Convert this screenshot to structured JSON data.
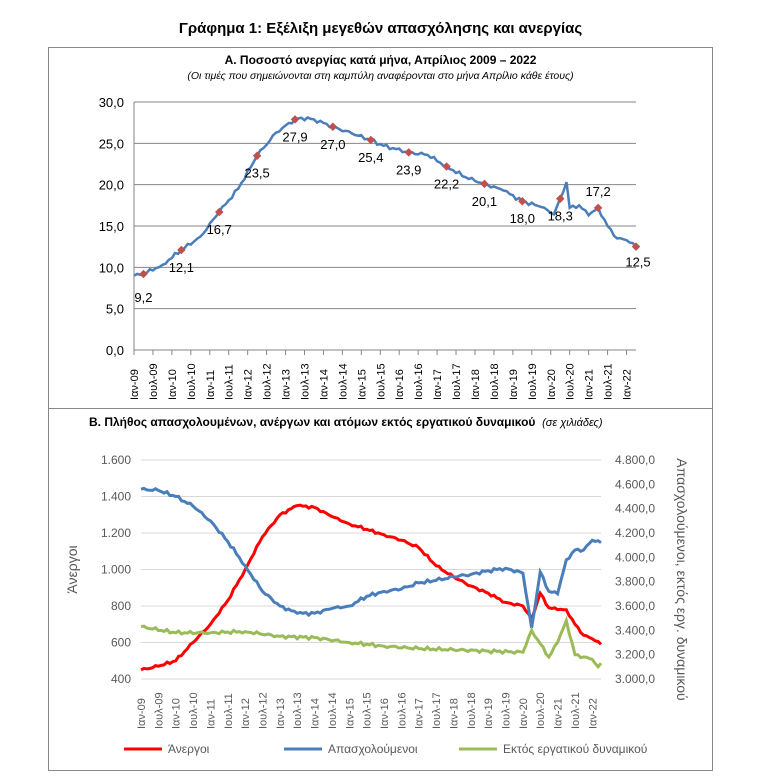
{
  "title": "Γράφημα 1: Εξέλιξη μεγεθών απασχόλησης και ανεργίας",
  "chart_data": [
    {
      "type": "line",
      "title": "Α. Ποσοστό ανεργίας κατά μήνα, Απρίλιος 2009 – 2022",
      "subtitle": "(Οι τιμές που σημειώνονται στη καμπύλη αναφέρονται στο μήνα Απρίλιο κάθε έτους)",
      "ylim": [
        0,
        30
      ],
      "yticks": [
        "0,0",
        "5,0",
        "10,0",
        "15,0",
        "20,0",
        "25,0",
        "30,0"
      ],
      "xlim": [
        "2009-01",
        "2022-04"
      ],
      "xticks": [
        "Ιαν-09",
        "Ιουλ-09",
        "Ιαν-10",
        "Ιουλ-10",
        "Ιαν-11",
        "Ιουλ-11",
        "Ιαν-12",
        "Ιουλ-12",
        "Ιαν-13",
        "Ιουλ-13",
        "Ιαν-14",
        "Ιουλ-14",
        "Ιαν-15",
        "Ιουλ-15",
        "Ιαν-16",
        "Ιουλ-16",
        "Ιαν-17",
        "Ιουλ-17",
        "Ιαν-18",
        "Ιουλ-18",
        "Ιαν-19",
        "Ιουλ-19",
        "Ιαν-20",
        "Ιουλ-20",
        "Ιαν-21",
        "Ιουλ-21",
        "Ιαν-22"
      ],
      "color": "#4a7ebb",
      "marker_color": "#c0504d",
      "series": [
        [
          "2009-01",
          9.0
        ],
        [
          "2009-04",
          9.2
        ],
        [
          "2009-10",
          10.3
        ],
        [
          "2010-04",
          12.1
        ],
        [
          "2010-10",
          13.7
        ],
        [
          "2011-04",
          16.7
        ],
        [
          "2011-10",
          19.5
        ],
        [
          "2012-04",
          23.5
        ],
        [
          "2012-10",
          26.3
        ],
        [
          "2013-04",
          27.9
        ],
        [
          "2013-06",
          28.1
        ],
        [
          "2013-10",
          27.9
        ],
        [
          "2014-04",
          27.0
        ],
        [
          "2014-10",
          26.2
        ],
        [
          "2015-04",
          25.4
        ],
        [
          "2015-08",
          24.7
        ],
        [
          "2016-04",
          23.9
        ],
        [
          "2016-10",
          23.6
        ],
        [
          "2017-04",
          22.2
        ],
        [
          "2017-10",
          20.9
        ],
        [
          "2018-04",
          20.1
        ],
        [
          "2018-10",
          19.3
        ],
        [
          "2019-04",
          18.0
        ],
        [
          "2019-10",
          17.3
        ],
        [
          "2020-02",
          16.4
        ],
        [
          "2020-04",
          18.3
        ],
        [
          "2020-06",
          20.3
        ],
        [
          "2020-07",
          17.2
        ],
        [
          "2020-10",
          17.5
        ],
        [
          "2021-01",
          16.3
        ],
        [
          "2021-04",
          17.2
        ],
        [
          "2021-07",
          15.0
        ],
        [
          "2021-10",
          13.5
        ],
        [
          "2022-01",
          13.3
        ],
        [
          "2022-04",
          12.5
        ]
      ],
      "annotations": [
        [
          "2009-04",
          "9,2"
        ],
        [
          "2010-04",
          "12,1"
        ],
        [
          "2011-04",
          "16,7"
        ],
        [
          "2012-04",
          "23,5"
        ],
        [
          "2013-04",
          "27,9"
        ],
        [
          "2014-04",
          "27,0"
        ],
        [
          "2015-04",
          "25,4"
        ],
        [
          "2016-04",
          "23,9"
        ],
        [
          "2017-04",
          "22,2"
        ],
        [
          "2018-04",
          "20,1"
        ],
        [
          "2019-04",
          "18,0"
        ],
        [
          "2020-04",
          "18,3"
        ],
        [
          "2021-04",
          "17,2"
        ],
        [
          "2022-04",
          "12,5"
        ]
      ]
    },
    {
      "type": "line",
      "title": "Β. Πλήθος απασχολουμένων, ανέργων και ατόμων εκτός εργατικού δυναμικού",
      "subtitle": "(σε χιλιάδες)",
      "ylabel": "Άνεργοι",
      "y2label": "Απασχολούμενοι, εκτός εργ. δυναμικού",
      "ylim": [
        400,
        1600
      ],
      "y2lim": [
        3000,
        4800
      ],
      "yticks": [
        "400",
        "600",
        "800",
        "1.000",
        "1.200",
        "1.400",
        "1.600"
      ],
      "y2ticks": [
        "3.000,0",
        "3.200,0",
        "3.400,0",
        "3.600,0",
        "3.800,0",
        "4.000,0",
        "4.200,0",
        "4.400,0",
        "4.600,0",
        "4.800,0"
      ],
      "xlim": [
        "2009-01",
        "2022-04"
      ],
      "xticks": [
        "Ιαν-09",
        "Ιουλ-09",
        "Ιαν-10",
        "Ιουλ-10",
        "Ιαν-11",
        "Ιουλ-11",
        "Ιαν-12",
        "Ιουλ-12",
        "Ιαν-13",
        "Ιουλ-13",
        "Ιαν-14",
        "Ιουλ-14",
        "Ιαν-15",
        "Ιουλ-15",
        "Ιαν-16",
        "Ιουλ-16",
        "Ιαν-17",
        "Ιουλ-17",
        "Ιαν-18",
        "Ιουλ-18",
        "Ιαν-19",
        "Ιουλ-19",
        "Ιαν-20",
        "Ιουλ-20",
        "Ιαν-21",
        "Ιουλ-21",
        "Ιαν-22"
      ],
      "legend_position": "bottom",
      "series": [
        {
          "name": "Άνεργοι",
          "axis": "left",
          "color": "#ff0000",
          "points": [
            [
              "2009-01",
              450
            ],
            [
              "2009-07",
              470
            ],
            [
              "2010-01",
              500
            ],
            [
              "2010-07",
              600
            ],
            [
              "2011-01",
              700
            ],
            [
              "2011-07",
              830
            ],
            [
              "2012-01",
              1000
            ],
            [
              "2012-07",
              1180
            ],
            [
              "2013-01",
              1300
            ],
            [
              "2013-07",
              1350
            ],
            [
              "2014-01",
              1340
            ],
            [
              "2014-07",
              1290
            ],
            [
              "2015-01",
              1250
            ],
            [
              "2015-07",
              1220
            ],
            [
              "2016-01",
              1190
            ],
            [
              "2016-07",
              1160
            ],
            [
              "2017-01",
              1120
            ],
            [
              "2017-07",
              1020
            ],
            [
              "2018-01",
              960
            ],
            [
              "2018-07",
              910
            ],
            [
              "2019-01",
              870
            ],
            [
              "2019-07",
              820
            ],
            [
              "2020-01",
              800
            ],
            [
              "2020-04",
              730
            ],
            [
              "2020-07",
              870
            ],
            [
              "2020-10",
              790
            ],
            [
              "2021-01",
              780
            ],
            [
              "2021-04",
              780
            ],
            [
              "2021-07",
              700
            ],
            [
              "2021-10",
              640
            ],
            [
              "2022-01",
              620
            ],
            [
              "2022-04",
              590
            ]
          ]
        },
        {
          "name": "Απασχολούμενοι",
          "axis": "right",
          "color": "#4a7ebb",
          "points": [
            [
              "2009-01",
              4560
            ],
            [
              "2009-07",
              4550
            ],
            [
              "2010-01",
              4500
            ],
            [
              "2010-07",
              4420
            ],
            [
              "2011-01",
              4300
            ],
            [
              "2011-07",
              4130
            ],
            [
              "2012-01",
              3930
            ],
            [
              "2012-07",
              3720
            ],
            [
              "2013-01",
              3600
            ],
            [
              "2013-07",
              3540
            ],
            [
              "2014-01",
              3540
            ],
            [
              "2014-07",
              3580
            ],
            [
              "2015-01",
              3600
            ],
            [
              "2015-07",
              3680
            ],
            [
              "2016-01",
              3720
            ],
            [
              "2016-07",
              3740
            ],
            [
              "2017-01",
              3790
            ],
            [
              "2017-07",
              3810
            ],
            [
              "2018-01",
              3840
            ],
            [
              "2018-07",
              3860
            ],
            [
              "2019-01",
              3890
            ],
            [
              "2019-07",
              3910
            ],
            [
              "2020-01",
              3870
            ],
            [
              "2020-04",
              3420
            ],
            [
              "2020-07",
              3880
            ],
            [
              "2020-10",
              3720
            ],
            [
              "2021-01",
              3700
            ],
            [
              "2021-04",
              3980
            ],
            [
              "2021-07",
              4060
            ],
            [
              "2021-10",
              4060
            ],
            [
              "2022-01",
              4140
            ],
            [
              "2022-04",
              4120
            ]
          ]
        },
        {
          "name": "Εκτός εργατικού δυναμικού",
          "axis": "right",
          "color": "#9bbb59",
          "points": [
            [
              "2009-01",
              3430
            ],
            [
              "2010-01",
              3380
            ],
            [
              "2011-01",
              3380
            ],
            [
              "2012-01",
              3390
            ],
            [
              "2013-01",
              3350
            ],
            [
              "2014-01",
              3340
            ],
            [
              "2015-01",
              3300
            ],
            [
              "2016-01",
              3270
            ],
            [
              "2017-01",
              3250
            ],
            [
              "2018-01",
              3240
            ],
            [
              "2019-01",
              3230
            ],
            [
              "2020-01",
              3220
            ],
            [
              "2020-04",
              3400
            ],
            [
              "2020-10",
              3180
            ],
            [
              "2021-01",
              3300
            ],
            [
              "2021-04",
              3480
            ],
            [
              "2021-07",
              3200
            ],
            [
              "2022-01",
              3160
            ],
            [
              "2022-03",
              3100
            ],
            [
              "2022-04",
              3130
            ]
          ]
        }
      ]
    }
  ]
}
